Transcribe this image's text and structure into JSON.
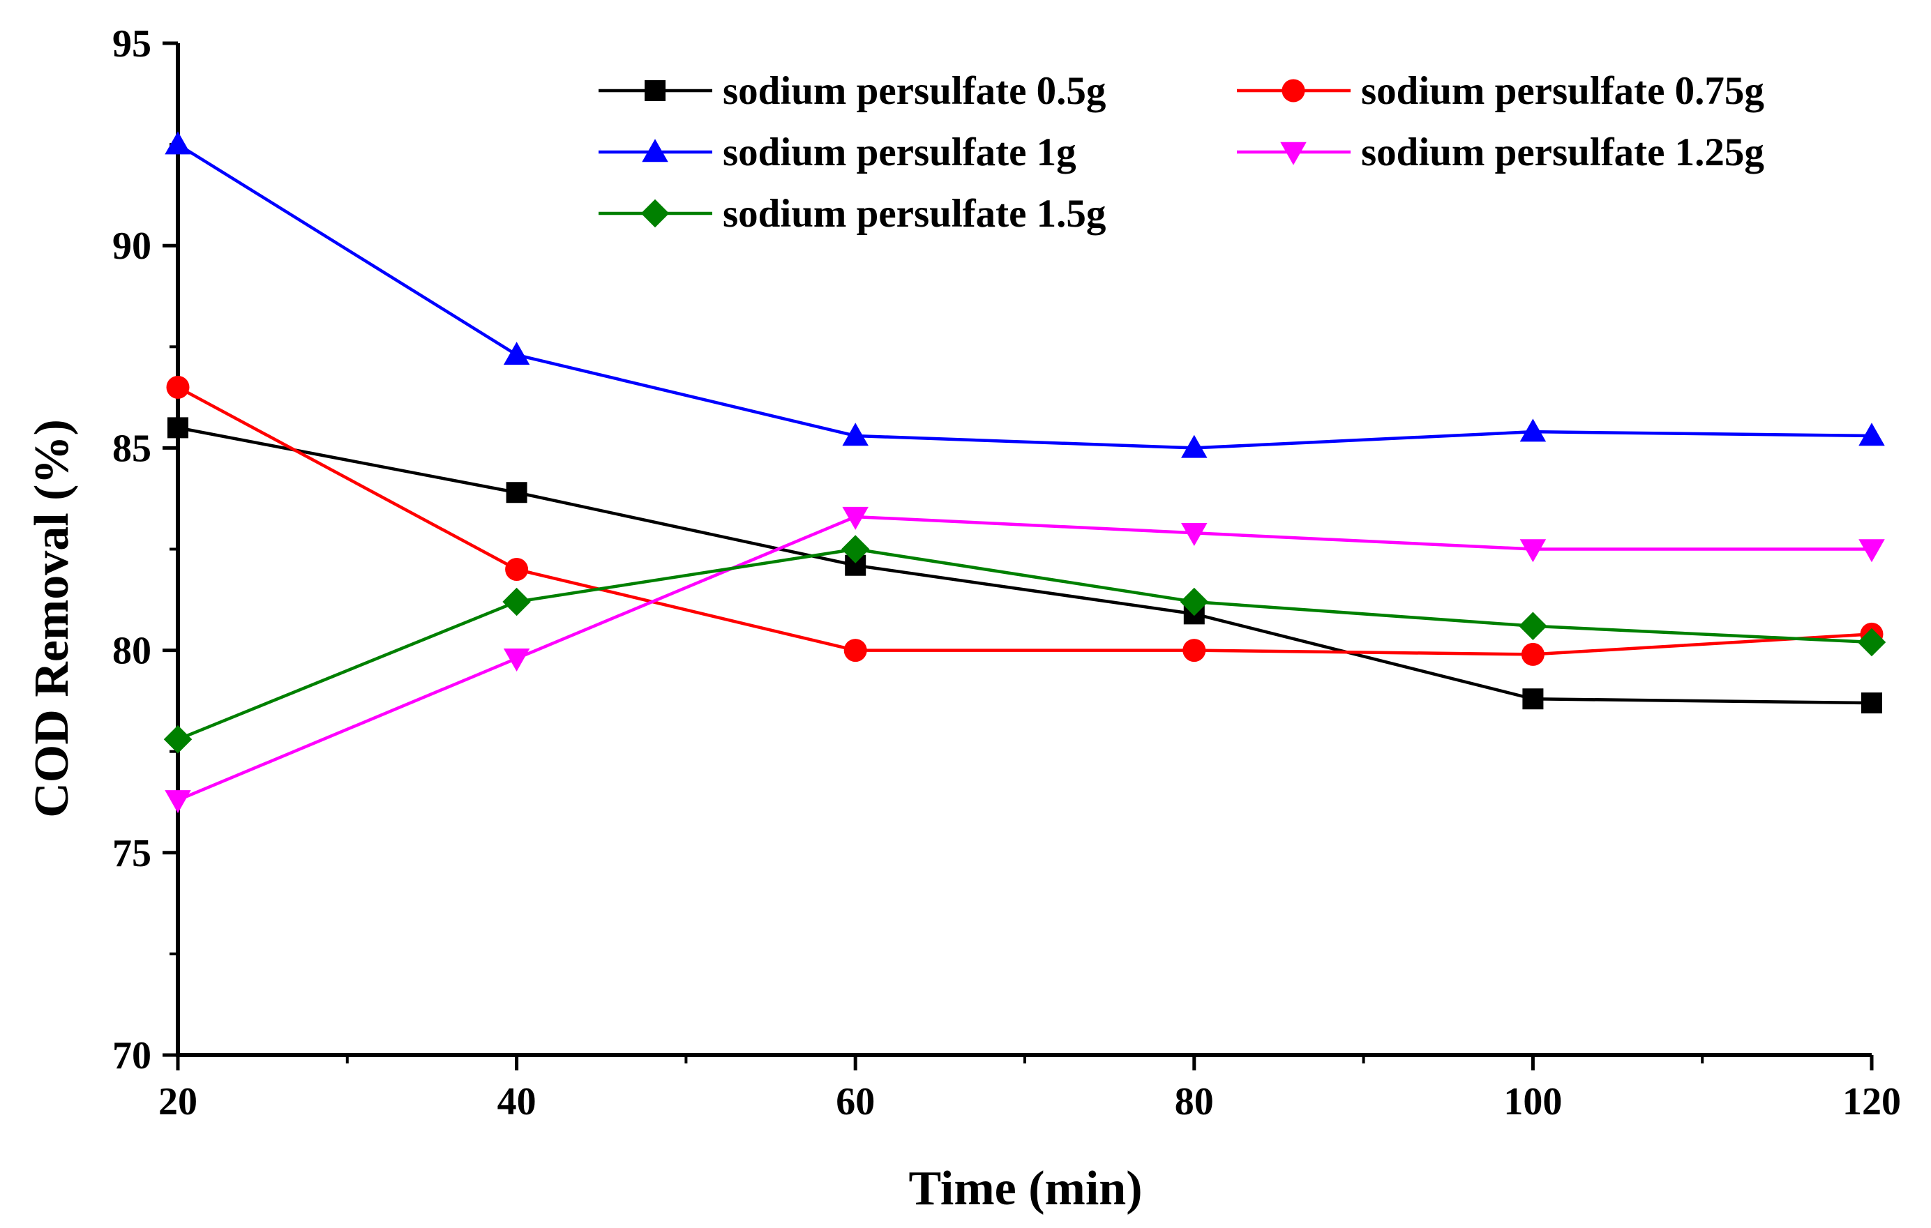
{
  "chart_data": {
    "type": "line",
    "title": "",
    "xlabel": "Time (min)",
    "ylabel": "COD Removal (%)",
    "xlim": [
      20,
      120
    ],
    "ylim": [
      70,
      95
    ],
    "x_ticks": [
      "20",
      "40",
      "60",
      "80",
      "100",
      "120"
    ],
    "y_ticks": [
      "70",
      "75",
      "80",
      "85",
      "90",
      "95"
    ],
    "x": [
      20,
      40,
      60,
      80,
      100,
      120
    ],
    "grid": false,
    "legend_position": "top-right",
    "series": [
      {
        "name": "sodium persulfate 0.5g",
        "color": "#000000",
        "marker": "square",
        "values": [
          85.5,
          83.9,
          82.1,
          80.9,
          78.8,
          78.7
        ]
      },
      {
        "name": "sodium persulfate 0.75g",
        "color": "#ff0000",
        "marker": "circle",
        "values": [
          86.5,
          82.0,
          80.0,
          80.0,
          79.9,
          80.4
        ]
      },
      {
        "name": "sodium persulfate 1g",
        "color": "#0000ff",
        "marker": "triangle-up",
        "values": [
          92.5,
          87.3,
          85.3,
          85.0,
          85.4,
          85.3
        ]
      },
      {
        "name": "sodium persulfate 1.25g",
        "color": "#ff00ff",
        "marker": "triangle-down",
        "values": [
          76.3,
          79.8,
          83.3,
          82.9,
          82.5,
          82.5
        ]
      },
      {
        "name": "sodium persulfate 1.5g",
        "color": "#008000",
        "marker": "diamond",
        "values": [
          77.8,
          81.2,
          82.5,
          81.2,
          80.6,
          80.2
        ]
      }
    ]
  }
}
